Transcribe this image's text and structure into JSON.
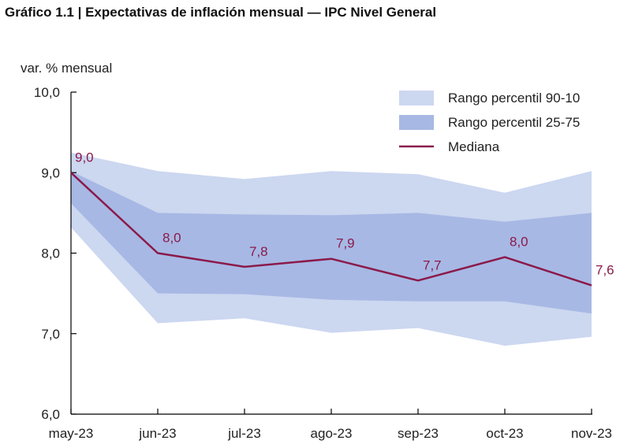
{
  "chart_data": {
    "type": "line",
    "title": "Gráfico 1.1 | Expectativas de inflación mensual — IPC Nivel General",
    "ylabel": "var. % mensual",
    "xlabel": "",
    "ylim": [
      6.0,
      10.0
    ],
    "y_ticks": [
      6.0,
      7.0,
      8.0,
      9.0,
      10.0
    ],
    "y_tick_labels": [
      "6,0",
      "7,0",
      "8,0",
      "9,0",
      "10,0"
    ],
    "categories": [
      "may-23",
      "jun-23",
      "jul-23",
      "ago-23",
      "sep-23",
      "oct-23",
      "nov-23"
    ],
    "grid": false,
    "legend_position": "top-right",
    "series": [
      {
        "name": "Rango percentil 90-10",
        "kind": "band",
        "color": "#ccd7f0",
        "upper": [
          9.25,
          9.02,
          8.92,
          9.02,
          8.98,
          8.75,
          9.02
        ],
        "lower": [
          8.32,
          7.13,
          7.19,
          7.01,
          7.07,
          6.85,
          6.96
        ]
      },
      {
        "name": "Rango percentil 25-75",
        "kind": "band",
        "color": "#a7b8e4",
        "upper": [
          9.02,
          8.5,
          8.48,
          8.47,
          8.5,
          8.39,
          8.5
        ],
        "lower": [
          8.62,
          7.5,
          7.49,
          7.42,
          7.4,
          7.4,
          7.25
        ]
      },
      {
        "name": "Mediana",
        "kind": "line",
        "color": "#8b1a4a",
        "values": [
          9.0,
          8.0,
          7.83,
          7.93,
          7.66,
          7.95,
          7.6
        ],
        "data_labels": [
          "9,0",
          "8,0",
          "7,8",
          "7,9",
          "7,7",
          "8,0",
          "7,6"
        ]
      }
    ]
  }
}
